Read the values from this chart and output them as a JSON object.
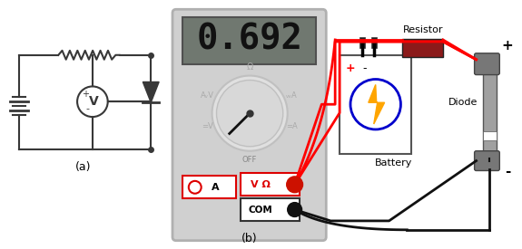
{
  "bg_color": "#ffffff",
  "fig_width": 5.75,
  "fig_height": 2.75,
  "dpi": 100,
  "label_a": "(a)",
  "label_b": "(b)",
  "display_text": "0.692",
  "resistor_color": "#8B1A1A",
  "multimeter_bg": "#d0d0d0",
  "multimeter_border": "#b0b0b0",
  "display_bg": "#707870",
  "circuit_color": "#383838",
  "red_wire": "#ff0000",
  "black_wire": "#111111",
  "red_box_color": "#dd0000",
  "diode_gray": "#909090",
  "battery_yellow": "#FFA500",
  "battery_blue": "#0000cc"
}
